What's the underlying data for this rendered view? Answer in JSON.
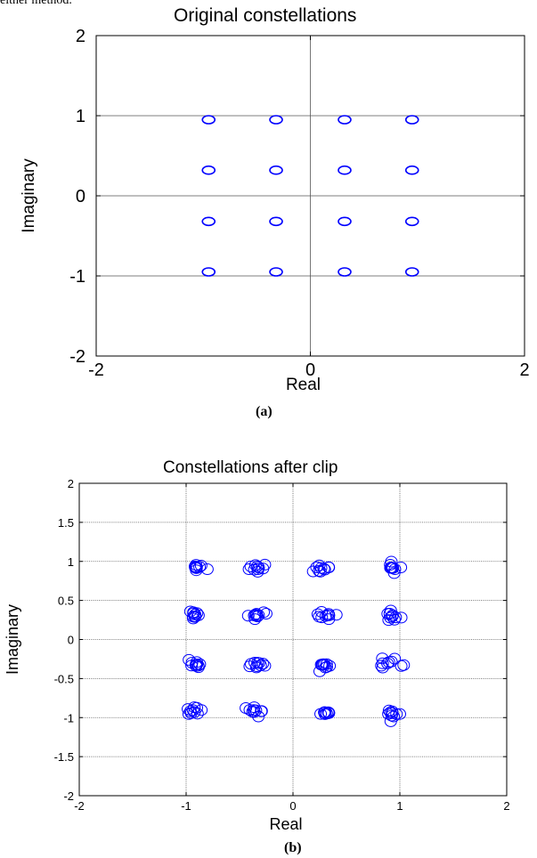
{
  "header": {
    "text": "either method."
  },
  "chart_data": [
    {
      "type": "scatter",
      "title": "Original constellations",
      "xlabel": "Real",
      "ylabel": "Imaginary",
      "xlim": [
        -2,
        2
      ],
      "ylim": [
        -2,
        2
      ],
      "xticks": [
        "-2",
        "0",
        "2"
      ],
      "yticks": [
        "-2",
        "-1",
        "0",
        "1",
        "2"
      ],
      "grid": true,
      "marker": "circle",
      "color": "#0000ff",
      "caption": "(a)",
      "points": [
        [
          -0.95,
          0.95
        ],
        [
          -0.32,
          0.95
        ],
        [
          0.32,
          0.95
        ],
        [
          0.95,
          0.95
        ],
        [
          -0.95,
          0.32
        ],
        [
          -0.32,
          0.32
        ],
        [
          0.32,
          0.32
        ],
        [
          0.95,
          0.32
        ],
        [
          -0.95,
          -0.32
        ],
        [
          -0.32,
          -0.32
        ],
        [
          0.32,
          -0.32
        ],
        [
          0.95,
          -0.32
        ],
        [
          -0.95,
          -0.95
        ],
        [
          -0.32,
          -0.95
        ],
        [
          0.32,
          -0.95
        ],
        [
          0.95,
          -0.95
        ]
      ]
    },
    {
      "type": "scatter",
      "title": "Constellations after clip",
      "xlabel": "Real",
      "ylabel": "Imaginary",
      "xlim": [
        -2,
        2
      ],
      "ylim": [
        -2,
        2
      ],
      "xticks": [
        "-2",
        "-1",
        "0",
        "1",
        "2"
      ],
      "yticks": [
        "-2",
        "-1.5",
        "-1",
        "-0.5",
        "0",
        "0.5",
        "1",
        "1.5",
        "2"
      ],
      "grid": true,
      "marker": "circle",
      "color": "#0000ff",
      "caption": "(b)",
      "cluster_centers": [
        [
          -0.92,
          0.92
        ],
        [
          -0.32,
          0.93
        ],
        [
          0.3,
          0.9
        ],
        [
          0.93,
          0.93
        ],
        [
          -0.92,
          0.31
        ],
        [
          -0.35,
          0.32
        ],
        [
          0.3,
          0.3
        ],
        [
          0.93,
          0.3
        ],
        [
          -0.92,
          -0.3
        ],
        [
          -0.33,
          -0.3
        ],
        [
          0.3,
          -0.32
        ],
        [
          0.92,
          -0.3
        ],
        [
          -0.92,
          -0.92
        ],
        [
          -0.35,
          -0.92
        ],
        [
          0.32,
          -0.95
        ],
        [
          0.94,
          -0.95
        ]
      ],
      "points_per_cluster": 10,
      "spread": 0.07
    }
  ]
}
